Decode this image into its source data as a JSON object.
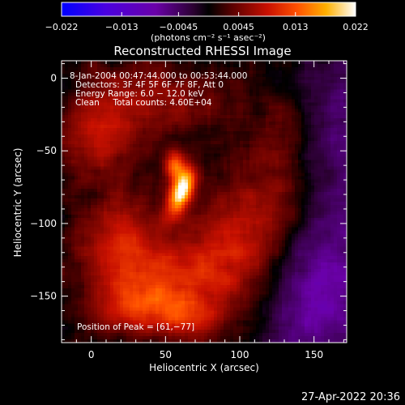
{
  "chart_data": {
    "type": "heatmap",
    "title": "Reconstructed RHESSI Image",
    "xlabel": "Heliocentric X (arcsec)",
    "ylabel": "Heliocentric Y (arcsec)",
    "xlim": [
      -20,
      172
    ],
    "ylim": [
      -182,
      12
    ],
    "x_ticks": [
      0,
      50,
      100,
      150
    ],
    "y_ticks": [
      0,
      -50,
      -100,
      -150
    ],
    "x_tick_labels": [
      "0",
      "50",
      "100",
      "150"
    ],
    "y_tick_labels": [
      "0",
      "−50",
      "−100",
      "−150"
    ],
    "colorbar": {
      "range": [
        -0.022,
        0.022
      ],
      "tick_values": [
        -0.022,
        -0.013,
        -0.0045,
        0.0045,
        0.013,
        0.022
      ],
      "tick_labels": [
        "−0.022",
        "−0.013",
        "−0.0045",
        "0.0045",
        "0.013",
        "0.022"
      ],
      "units_label": "(photons cm⁻² s⁻¹ asec⁻²)"
    },
    "annotations": [
      "8-Jan-2004 00:47:44.000 to 00:53:44.000",
      "Detectors: 3F 4F 5F 6F 7F 8F, Att 0",
      "Energy Range: 6.0 − 12.0 keV",
      "Clean     Total counts: 4.60E+04"
    ],
    "peak_label": "Position of Peak = [61,−77]",
    "peak": [
      61,
      -77
    ],
    "components": [
      {
        "x": 61,
        "y": -77,
        "sx": 5,
        "sy": 12,
        "amp": 0.021,
        "rot": 0.35
      },
      {
        "x": 56,
        "y": -60,
        "sx": 5,
        "sy": 7,
        "amp": 0.012,
        "rot": 0
      },
      {
        "x": 20,
        "y": -110,
        "sx": 22,
        "sy": 22,
        "amp": 0.008,
        "rot": 0
      },
      {
        "x": 45,
        "y": -140,
        "sx": 28,
        "sy": 18,
        "amp": 0.008,
        "rot": 0
      },
      {
        "x": 90,
        "y": -120,
        "sx": 20,
        "sy": 30,
        "amp": 0.008,
        "rot": 0
      },
      {
        "x": 5,
        "y": -40,
        "sx": 18,
        "sy": 22,
        "amp": 0.0075,
        "rot": 0
      },
      {
        "x": 45,
        "y": -15,
        "sx": 30,
        "sy": 18,
        "amp": 0.006,
        "rot": 0
      },
      {
        "x": 125,
        "y": -80,
        "sx": 20,
        "sy": 45,
        "amp": 0.006,
        "rot": 0
      },
      {
        "x": 30,
        "y": -160,
        "sx": 25,
        "sy": 12,
        "amp": 0.007,
        "rot": 0
      },
      {
        "x": 65,
        "y": -165,
        "sx": 15,
        "sy": 10,
        "amp": 0.006,
        "rot": 0
      },
      {
        "x": 150,
        "y": -150,
        "sx": 25,
        "sy": 40,
        "amp": -0.008,
        "rot": 0
      },
      {
        "x": 165,
        "y": -40,
        "sx": 18,
        "sy": 60,
        "amp": -0.005,
        "rot": 0
      }
    ]
  },
  "footer": {
    "timestamp": "27-Apr-2022 20:36"
  }
}
